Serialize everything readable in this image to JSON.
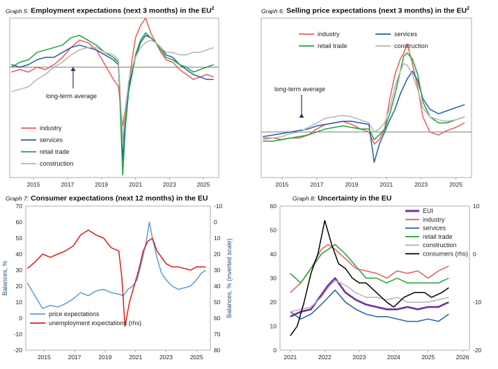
{
  "chart_data": [
    {
      "id": "g5",
      "type": "line",
      "title_prefix": "Graph 5:",
      "title": "Employment expectations (next 3 months) in the EU",
      "title_sup": "2",
      "annotation": "long-term average",
      "x_ticks": [
        "2015",
        "2017",
        "2019",
        "2021",
        "2023",
        "2025"
      ],
      "xlim": [
        2013.6,
        2025.9
      ],
      "ylim": [
        -45,
        20
      ],
      "long_term_average": 0,
      "series": [
        {
          "name": "industry",
          "color": "#ef5a5a",
          "x": [
            2013.7,
            2014.2,
            2014.7,
            2015.2,
            2015.7,
            2016.2,
            2016.7,
            2017.2,
            2017.7,
            2018.2,
            2018.7,
            2019.2,
            2019.7,
            2020.0,
            2020.25,
            2020.4,
            2020.6,
            2020.8,
            2021.0,
            2021.3,
            2021.6,
            2021.9,
            2022.2,
            2022.5,
            2022.8,
            2023.2,
            2023.6,
            2024.0,
            2024.4,
            2024.8,
            2025.2,
            2025.6
          ],
          "y": [
            -2,
            -1,
            -2,
            0,
            -1,
            1,
            4,
            8,
            11,
            10,
            7,
            1,
            -5,
            -8,
            -24,
            -17,
            -7,
            3,
            12,
            17,
            20,
            14,
            10,
            6,
            3,
            2,
            -1,
            -3,
            -5,
            -4,
            -3,
            -4
          ]
        },
        {
          "name": "services",
          "color": "#1f5fa8",
          "x": [
            2013.7,
            2014.2,
            2014.7,
            2015.2,
            2015.7,
            2016.2,
            2016.7,
            2017.2,
            2017.7,
            2018.2,
            2018.7,
            2019.2,
            2019.7,
            2020.0,
            2020.25,
            2020.4,
            2020.6,
            2020.8,
            2021.0,
            2021.3,
            2021.6,
            2021.9,
            2022.2,
            2022.5,
            2022.8,
            2023.2,
            2023.6,
            2024.0,
            2024.4,
            2024.8,
            2025.2,
            2025.6
          ],
          "y": [
            1,
            0,
            1,
            3,
            4,
            4,
            6,
            8,
            9,
            8,
            7,
            5,
            3,
            1,
            -38,
            -20,
            -8,
            -2,
            4,
            10,
            13,
            12,
            10,
            8,
            5,
            4,
            1,
            -1,
            -3,
            -4,
            -5,
            -5
          ]
        },
        {
          "name": "retail trade",
          "color": "#1ea33a",
          "x": [
            2013.7,
            2014.2,
            2014.7,
            2015.2,
            2015.7,
            2016.2,
            2016.7,
            2017.2,
            2017.7,
            2018.2,
            2018.7,
            2019.2,
            2019.7,
            2020.0,
            2020.25,
            2020.4,
            2020.6,
            2020.8,
            2021.0,
            2021.3,
            2021.6,
            2021.9,
            2022.2,
            2022.5,
            2022.8,
            2023.2,
            2023.6,
            2024.0,
            2024.4,
            2024.8,
            2025.2,
            2025.6
          ],
          "y": [
            0,
            2,
            3,
            6,
            7,
            8,
            9,
            12,
            13,
            11,
            9,
            6,
            4,
            2,
            -44,
            -25,
            -10,
            -3,
            5,
            11,
            14,
            12,
            10,
            7,
            4,
            3,
            1,
            0,
            -2,
            -1,
            0,
            1
          ]
        },
        {
          "name": "construction",
          "color": "#b4b4b4",
          "x": [
            2013.7,
            2014.2,
            2014.7,
            2015.2,
            2015.7,
            2016.2,
            2016.7,
            2017.2,
            2017.7,
            2018.2,
            2018.7,
            2019.2,
            2019.7,
            2020.0,
            2020.25,
            2020.4,
            2020.6,
            2020.8,
            2021.0,
            2021.3,
            2021.6,
            2021.9,
            2022.2,
            2022.5,
            2022.8,
            2023.2,
            2023.6,
            2024.0,
            2024.4,
            2024.8,
            2025.2,
            2025.6
          ],
          "y": [
            -10,
            -9,
            -8,
            -5,
            -3,
            0,
            2,
            5,
            7,
            8,
            8,
            6,
            5,
            3,
            -30,
            -18,
            -6,
            0,
            4,
            8,
            10,
            11,
            10,
            8,
            6,
            6,
            5,
            5,
            6,
            6,
            7,
            8
          ]
        }
      ]
    },
    {
      "id": "g6",
      "type": "line",
      "title_prefix": "Graph 6:",
      "title": "Selling price expectations (next 3 months) in the EU",
      "title_sup": "2",
      "annotation": "long-term average",
      "x_ticks": [
        "2015",
        "2017",
        "2019",
        "2021",
        "2023",
        "2025"
      ],
      "xlim": [
        2013.8,
        2025.9
      ],
      "ylim": [
        -30,
        75
      ],
      "long_term_average": 0,
      "series": [
        {
          "name": "industry",
          "color": "#ef5a5a",
          "x": [
            2013.9,
            2014.5,
            2015.0,
            2015.5,
            2016.0,
            2016.5,
            2017.0,
            2017.5,
            2018.0,
            2018.5,
            2019.0,
            2019.5,
            2020.0,
            2020.3,
            2020.6,
            2020.9,
            2021.2,
            2021.5,
            2021.8,
            2022.0,
            2022.2,
            2022.5,
            2022.8,
            2023.1,
            2023.5,
            2024.0,
            2024.5,
            2025.0,
            2025.5
          ],
          "y": [
            -4,
            -4,
            -5,
            -4,
            -4,
            -2,
            2,
            5,
            6,
            7,
            5,
            2,
            0,
            -8,
            -5,
            2,
            22,
            38,
            48,
            52,
            58,
            45,
            30,
            10,
            0,
            -2,
            1,
            3,
            6
          ]
        },
        {
          "name": "services",
          "color": "#1f5fa8",
          "x": [
            2013.9,
            2014.5,
            2015.0,
            2015.5,
            2016.0,
            2016.5,
            2017.0,
            2017.5,
            2018.0,
            2018.5,
            2019.0,
            2019.5,
            2020.0,
            2020.3,
            2020.6,
            2020.9,
            2021.2,
            2021.5,
            2021.8,
            2022.0,
            2022.2,
            2022.5,
            2022.8,
            2023.1,
            2023.5,
            2024.0,
            2024.5,
            2025.0,
            2025.5
          ],
          "y": [
            -3,
            -2,
            -1,
            0,
            1,
            2,
            4,
            5,
            6,
            7,
            7,
            6,
            5,
            -20,
            -8,
            0,
            8,
            15,
            25,
            30,
            35,
            40,
            34,
            22,
            15,
            12,
            14,
            16,
            18
          ]
        },
        {
          "name": "retail trade",
          "color": "#1ea33a",
          "x": [
            2013.9,
            2014.5,
            2015.0,
            2015.5,
            2016.0,
            2016.5,
            2017.0,
            2017.5,
            2018.0,
            2018.5,
            2019.0,
            2019.5,
            2020.0,
            2020.3,
            2020.6,
            2020.9,
            2021.2,
            2021.5,
            2021.8,
            2022.0,
            2022.2,
            2022.5,
            2022.8,
            2023.1,
            2023.5,
            2024.0,
            2024.5,
            2025.0,
            2025.5
          ],
          "y": [
            -6,
            -6,
            -5,
            -4,
            -3,
            -2,
            0,
            2,
            3,
            4,
            3,
            2,
            2,
            -5,
            -2,
            2,
            12,
            25,
            40,
            50,
            52,
            48,
            38,
            20,
            10,
            6,
            6,
            8,
            10
          ]
        },
        {
          "name": "construction",
          "color": "#b4b4b4",
          "x": [
            2013.9,
            2014.5,
            2015.0,
            2015.5,
            2016.0,
            2016.5,
            2017.0,
            2017.5,
            2018.0,
            2018.5,
            2019.0,
            2019.5,
            2020.0,
            2020.3,
            2020.6,
            2020.9,
            2021.2,
            2021.5,
            2021.8,
            2022.0,
            2022.2,
            2022.5,
            2022.8,
            2023.1,
            2023.5,
            2024.0,
            2024.5,
            2025.0,
            2025.5
          ],
          "y": [
            -5,
            -4,
            -3,
            -1,
            0,
            3,
            6,
            9,
            10,
            11,
            10,
            8,
            6,
            0,
            2,
            6,
            16,
            30,
            40,
            45,
            44,
            38,
            28,
            16,
            10,
            8,
            7,
            8,
            10
          ]
        }
      ]
    },
    {
      "id": "g7",
      "type": "line",
      "title_prefix": "Graph 7:",
      "title": "Consumer expectations (next 12 months) in the EU",
      "x_ticks": [
        "2015",
        "2017",
        "2019",
        "2021",
        "2023",
        "2025"
      ],
      "xlim": [
        2013.8,
        2025.9
      ],
      "ylim": [
        -20,
        70
      ],
      "ylim_right": [
        -10,
        80
      ],
      "right_inverted": true,
      "yticks_left": [
        -20,
        -10,
        0,
        10,
        20,
        30,
        40,
        50,
        60,
        70
      ],
      "yticks_right": [
        -10,
        0,
        10,
        20,
        30,
        40,
        50,
        60,
        70,
        80
      ],
      "ylabel": "Balances, %",
      "ylabel_right": "Balances, % (inverted scale)",
      "series": [
        {
          "name": "price expectations",
          "color": "#5b9bd5",
          "axis": "left",
          "x": [
            2013.9,
            2014.4,
            2014.9,
            2015.4,
            2015.9,
            2016.4,
            2016.9,
            2017.4,
            2017.9,
            2018.4,
            2018.9,
            2019.4,
            2019.9,
            2020.2,
            2020.5,
            2020.8,
            2021.1,
            2021.4,
            2021.7,
            2021.9,
            2022.1,
            2022.4,
            2022.7,
            2023.0,
            2023.4,
            2023.8,
            2024.2,
            2024.6,
            2025.0,
            2025.3,
            2025.6
          ],
          "y": [
            22,
            14,
            6,
            8,
            7,
            9,
            12,
            16,
            14,
            17,
            18,
            16,
            15,
            14,
            18,
            20,
            24,
            35,
            48,
            60,
            50,
            38,
            28,
            24,
            20,
            18,
            19,
            20,
            24,
            28,
            30
          ]
        },
        {
          "name": "unemployment expectations (rhs)",
          "color": "#e01b1b",
          "axis": "right",
          "x": [
            2013.9,
            2014.4,
            2014.9,
            2015.4,
            2015.9,
            2016.4,
            2016.9,
            2017.4,
            2017.9,
            2018.4,
            2018.9,
            2019.4,
            2019.9,
            2020.1,
            2020.3,
            2020.6,
            2020.9,
            2021.2,
            2021.5,
            2021.8,
            2022.1,
            2022.4,
            2022.7,
            2023.0,
            2023.4,
            2023.8,
            2024.2,
            2024.6,
            2025.0,
            2025.3,
            2025.6
          ],
          "y": [
            29,
            25,
            20,
            22,
            20,
            18,
            15,
            8,
            5,
            8,
            10,
            16,
            18,
            35,
            65,
            50,
            40,
            30,
            18,
            12,
            10,
            18,
            22,
            26,
            28,
            28,
            29,
            30,
            28,
            28,
            28
          ]
        }
      ]
    },
    {
      "id": "g8",
      "type": "line",
      "title_prefix": "Graph 8:",
      "title": "Uncertainty in the EU",
      "x_ticks": [
        "2021",
        "2022",
        "2023",
        "2024",
        "2025",
        "2026"
      ],
      "xlim": [
        2020.7,
        2026.2
      ],
      "ylim": [
        0,
        60
      ],
      "ylim_right": [
        -20,
        10
      ],
      "yticks_left": [
        0,
        10,
        20,
        30,
        40,
        50,
        60
      ],
      "yticks_right": [
        -20,
        -10,
        0,
        10
      ],
      "series": [
        {
          "name": "EUI",
          "color": "#7030a0",
          "axis": "left",
          "thick": true,
          "x": [
            2021.0,
            2021.3,
            2021.6,
            2021.9,
            2022.1,
            2022.3,
            2022.6,
            2022.9,
            2023.2,
            2023.5,
            2023.8,
            2024.1,
            2024.4,
            2024.7,
            2025.0,
            2025.3,
            2025.6
          ],
          "y": [
            14,
            16,
            17,
            23,
            27,
            30,
            24,
            21,
            19,
            18,
            17,
            17,
            18,
            17,
            18,
            18,
            20
          ]
        },
        {
          "name": "industry",
          "color": "#ef5a5a",
          "axis": "left",
          "x": [
            2021.0,
            2021.3,
            2021.6,
            2021.9,
            2022.1,
            2022.3,
            2022.6,
            2022.9,
            2023.2,
            2023.5,
            2023.8,
            2024.1,
            2024.4,
            2024.7,
            2025.0,
            2025.3,
            2025.6
          ],
          "y": [
            24,
            28,
            34,
            42,
            44,
            42,
            38,
            34,
            33,
            32,
            30,
            33,
            32,
            33,
            30,
            33,
            35
          ]
        },
        {
          "name": "services",
          "color": "#1f5fa8",
          "axis": "left",
          "x": [
            2021.0,
            2021.3,
            2021.6,
            2021.9,
            2022.1,
            2022.3,
            2022.6,
            2022.9,
            2023.2,
            2023.5,
            2023.8,
            2024.1,
            2024.4,
            2024.7,
            2025.0,
            2025.3,
            2025.6
          ],
          "y": [
            16,
            13,
            15,
            19,
            22,
            25,
            20,
            17,
            15,
            14,
            14,
            13,
            12,
            12,
            13,
            12,
            15
          ]
        },
        {
          "name": "retail trade",
          "color": "#1ea33a",
          "axis": "left",
          "x": [
            2021.0,
            2021.3,
            2021.6,
            2021.9,
            2022.1,
            2022.3,
            2022.6,
            2022.9,
            2023.2,
            2023.5,
            2023.8,
            2024.1,
            2024.4,
            2024.7,
            2025.0,
            2025.3,
            2025.6
          ],
          "y": [
            32,
            28,
            34,
            40,
            42,
            44,
            40,
            35,
            30,
            30,
            28,
            30,
            28,
            28,
            28,
            28,
            30
          ]
        },
        {
          "name": "construction",
          "color": "#b4b4b4",
          "axis": "left",
          "x": [
            2021.0,
            2021.3,
            2021.6,
            2021.9,
            2022.1,
            2022.3,
            2022.6,
            2022.9,
            2023.2,
            2023.5,
            2023.8,
            2024.1,
            2024.4,
            2024.7,
            2025.0,
            2025.3,
            2025.6
          ],
          "y": [
            16,
            17,
            18,
            22,
            26,
            29,
            27,
            24,
            22,
            22,
            21,
            22,
            20,
            20,
            20,
            21,
            22
          ]
        },
        {
          "name": "consumers (rhs)",
          "color": "#000000",
          "axis": "right",
          "x": [
            2021.0,
            2021.2,
            2021.4,
            2021.6,
            2021.8,
            2022.0,
            2022.2,
            2022.4,
            2022.6,
            2022.8,
            2023.0,
            2023.2,
            2023.5,
            2023.8,
            2024.0,
            2024.3,
            2024.6,
            2024.9,
            2025.1,
            2025.4,
            2025.6
          ],
          "y": [
            -17,
            -15,
            -10,
            -4,
            0,
            7,
            2,
            -2,
            -3,
            -5,
            -6,
            -6,
            -8,
            -10,
            -11,
            -9,
            -8,
            -8,
            -9,
            -8,
            -7
          ]
        }
      ]
    }
  ]
}
